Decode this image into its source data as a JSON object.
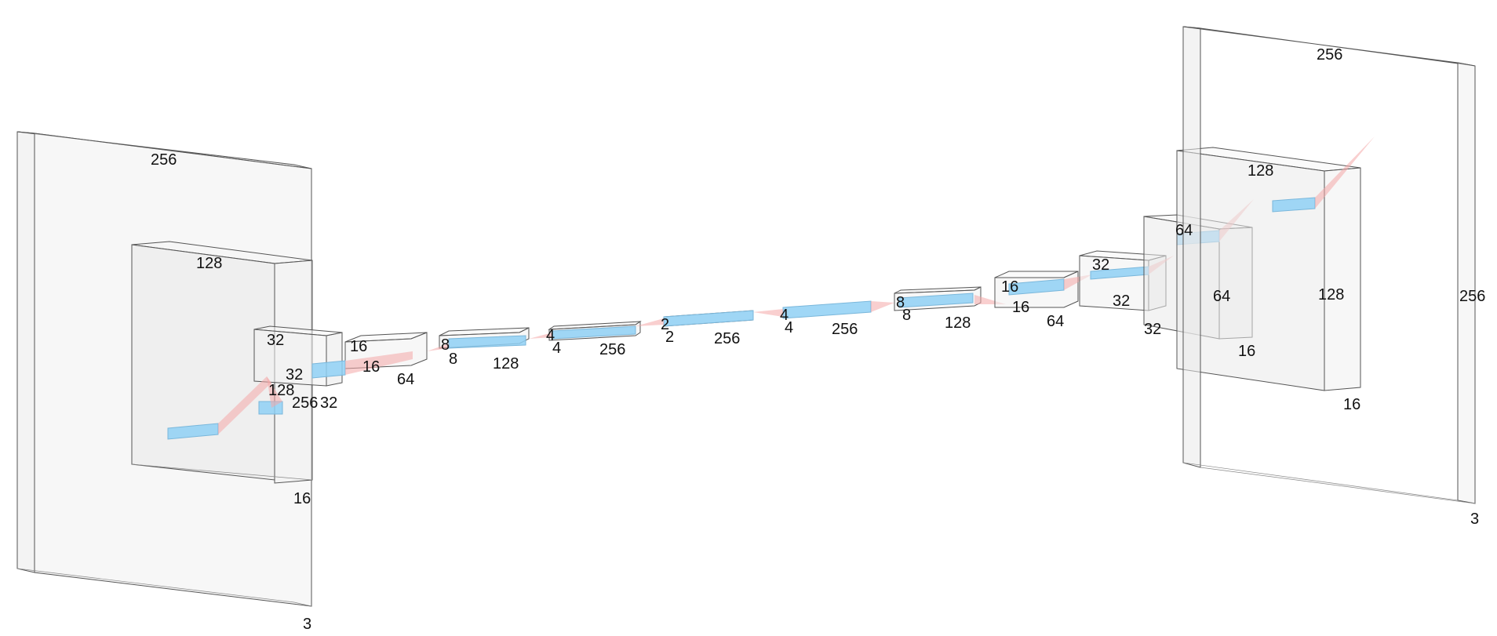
{
  "layers": [
    {
      "id": "in-plate",
      "labels": [
        "256",
        "3"
      ]
    },
    {
      "id": "enc-128",
      "labels": [
        "128",
        "16"
      ]
    },
    {
      "id": "enc-32",
      "labels": [
        "32",
        "256",
        "32",
        "128"
      ]
    },
    {
      "id": "enc-16",
      "labels": [
        "16",
        "16",
        "64"
      ]
    },
    {
      "id": "enc-8",
      "labels": [
        "8",
        "8",
        "128"
      ]
    },
    {
      "id": "enc-4",
      "labels": [
        "4",
        "4",
        "256"
      ]
    },
    {
      "id": "mid-2",
      "labels": [
        "2",
        "2",
        "256"
      ]
    },
    {
      "id": "dec-4",
      "labels": [
        "4",
        "4",
        "256"
      ]
    },
    {
      "id": "dec-8",
      "labels": [
        "8",
        "8",
        "128"
      ]
    },
    {
      "id": "dec-16",
      "labels": [
        "16",
        "16",
        "64"
      ]
    },
    {
      "id": "dec-32",
      "labels": [
        "32",
        "32",
        "32"
      ]
    },
    {
      "id": "dec-64",
      "labels": [
        "64",
        "64",
        "16"
      ]
    },
    {
      "id": "dec-128",
      "labels": [
        "128",
        "128",
        "16"
      ]
    },
    {
      "id": "out-plate",
      "labels": [
        "256",
        "256",
        "3"
      ]
    }
  ],
  "colors": {
    "block": "#f1f1f1",
    "edge": "#555555",
    "bar": "#8fd0f5",
    "connector": "#f4a8a8"
  }
}
